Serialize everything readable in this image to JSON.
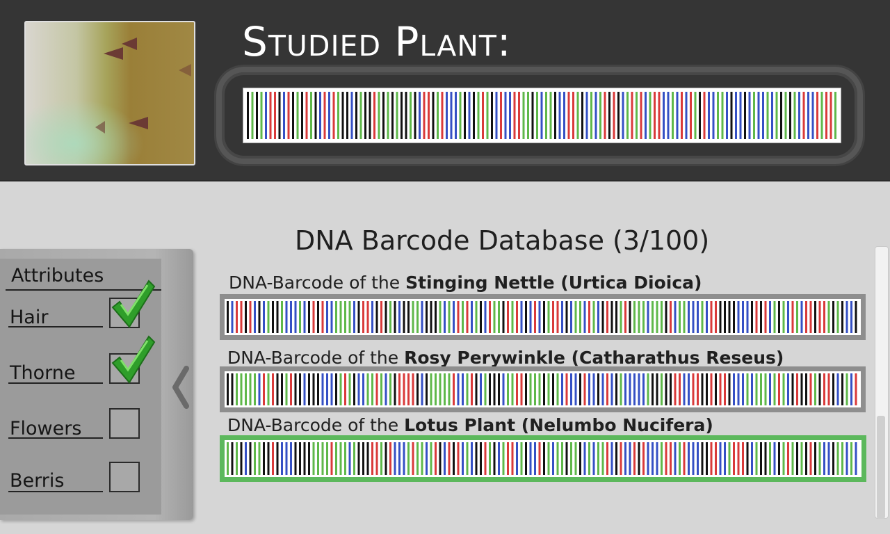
{
  "header": {
    "title": "Studied Plant:",
    "image": "plant-thorns-photo"
  },
  "database": {
    "title": "DNA Barcode Database (3/100)",
    "entries": [
      {
        "prefix": "DNA-Barcode of the ",
        "name": "Stinging Nettle (Urtica Dioica)",
        "selected": false,
        "seed": 11
      },
      {
        "prefix": "DNA-Barcode of the ",
        "name": "Rosy Perywinkle (Catharathus Reseus)",
        "selected": false,
        "seed": 23
      },
      {
        "prefix": "DNA-Barcode of the ",
        "name": "Lotus Plant (Nelumbo Nucifera)",
        "selected": true,
        "seed": 37
      }
    ]
  },
  "attributes": {
    "title": "Attributes",
    "items": [
      {
        "label": "Hair",
        "checked": true
      },
      {
        "label": "Thorne",
        "checked": true
      },
      {
        "label": "Flowers",
        "checked": false
      },
      {
        "label": "Berris",
        "checked": false
      }
    ]
  },
  "barcode_colors": [
    "#d93a3a",
    "#3550c4",
    "#5fb84a",
    "#111111"
  ],
  "selection_color": "#5cb85c",
  "icons": {
    "collapse": "chevron-left-icon",
    "check": "check-icon"
  }
}
